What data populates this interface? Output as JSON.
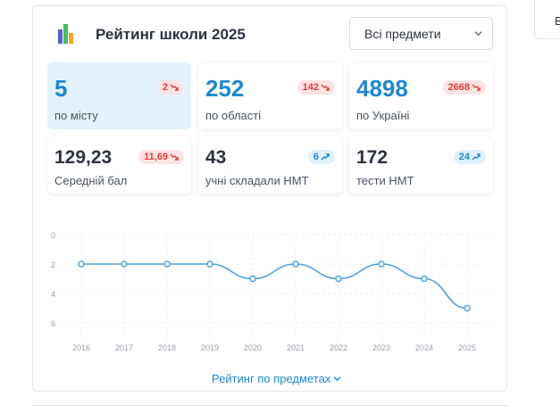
{
  "header": {
    "title": "Рейтинг школи 2025"
  },
  "subject_select": {
    "value": "Всі предмети"
  },
  "stats": [
    {
      "value": "5",
      "caption": "по місту",
      "badge": "2",
      "trend": "down"
    },
    {
      "value": "252",
      "caption": "по області",
      "badge": "142",
      "trend": "down"
    },
    {
      "value": "4898",
      "caption": "по Україні",
      "badge": "2668",
      "trend": "down"
    },
    {
      "value": "129,23",
      "caption": "Середній бал",
      "badge": "11,69",
      "trend": "down"
    },
    {
      "value": "43",
      "caption": "учні складали НМТ",
      "badge": "6",
      "trend": "up"
    },
    {
      "value": "172",
      "caption": "тести НМТ",
      "badge": "24",
      "trend": "up"
    }
  ],
  "colors": {
    "accent": "#1e88d2",
    "line": "#4aa3df",
    "down": "#e23b3b",
    "active_bg": "#e3f3fd"
  },
  "chart_data": {
    "type": "line",
    "x": [
      "2016",
      "2017",
      "2018",
      "2019",
      "2020",
      "2021",
      "2022",
      "2023",
      "2024",
      "2025"
    ],
    "series": [
      {
        "values": [
          2,
          2,
          2,
          2,
          3,
          2,
          3,
          2,
          3,
          5
        ]
      }
    ],
    "ylim": [
      0,
      6
    ],
    "yticks": [
      "0",
      "2",
      "4",
      "6"
    ],
    "y_inverted": true,
    "grid": true
  },
  "footer": {
    "more_label": "Рейтинг по предметах"
  },
  "side_fragment": {
    "label": "В"
  }
}
